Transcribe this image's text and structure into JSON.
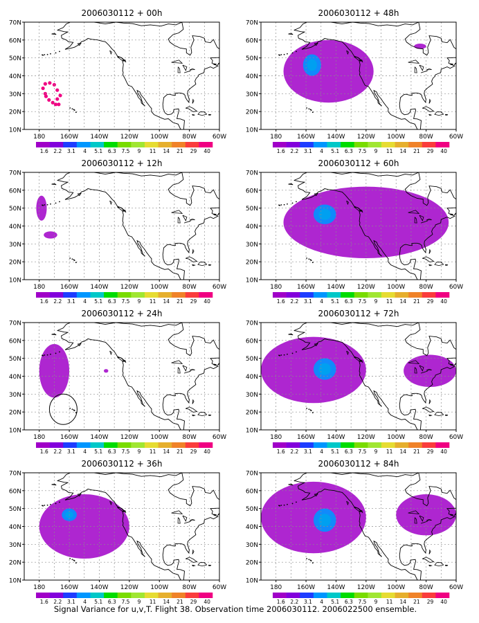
{
  "caption": "Signal Variance for u,v,T. Flight 38. Observation time 2006030112. 2006022500 ensemble.",
  "map": {
    "lon_range": [
      -190,
      -60
    ],
    "lat_range": [
      10,
      70
    ],
    "lon_ticks": [
      "180",
      "160W",
      "140W",
      "120W",
      "100W",
      "80W",
      "60W"
    ],
    "lat_ticks": [
      "10N",
      "20N",
      "30N",
      "40N",
      "50N",
      "60N",
      "70N"
    ]
  },
  "colorbar": {
    "labels": [
      "1.6",
      "2.2",
      "3.1",
      "4",
      "5.1",
      "6.3",
      "7.5",
      "9",
      "11",
      "14",
      "21",
      "29",
      "40"
    ],
    "colors": [
      "#a000c8",
      "#8200dc",
      "#1e3cff",
      "#0096ff",
      "#00c8c8",
      "#00dc00",
      "#78dc00",
      "#a0e632",
      "#e6dc32",
      "#e6af2d",
      "#f08228",
      "#fa3c3c",
      "#f00082"
    ]
  },
  "chart_data": [
    {
      "type": "heatmap",
      "title": "2006030112 + 00h",
      "quantity": "signal variance",
      "regions": [
        {
          "level": "40",
          "note": "ring of observation dots",
          "lon_range": [
            -178,
            -165
          ],
          "lat_range": [
            23,
            36
          ]
        }
      ]
    },
    {
      "type": "heatmap",
      "title": "2006030112 + 48h",
      "quantity": "signal variance",
      "regions": [
        {
          "level": "1.6-3.1",
          "lon_range": [
            -175,
            -115
          ],
          "lat_range": [
            25,
            60
          ]
        },
        {
          "level": "4-5.1",
          "lon_range": [
            -162,
            -150
          ],
          "lat_range": [
            40,
            52
          ]
        },
        {
          "level": "1.6-2.2",
          "lon_range": [
            -88,
            -80
          ],
          "lat_range": [
            55,
            58
          ]
        }
      ]
    },
    {
      "type": "heatmap",
      "title": "2006030112 + 12h",
      "quantity": "signal variance",
      "regions": [
        {
          "level": "1.6-2.2",
          "lon_range": [
            -182,
            -175
          ],
          "lat_range": [
            43,
            57
          ]
        },
        {
          "level": "1.6-2.2",
          "lon_range": [
            -177,
            -168
          ],
          "lat_range": [
            33,
            37
          ]
        }
      ]
    },
    {
      "type": "heatmap",
      "title": "2006030112 + 60h",
      "quantity": "signal variance",
      "regions": [
        {
          "level": "1.6-3.1",
          "lon_range": [
            -175,
            -65
          ],
          "lat_range": [
            22,
            62
          ]
        },
        {
          "level": "4-5.1",
          "lon_range": [
            -155,
            -140
          ],
          "lat_range": [
            41,
            52
          ]
        }
      ]
    },
    {
      "type": "heatmap",
      "title": "2006030112 + 24h",
      "quantity": "signal variance",
      "regions": [
        {
          "level": "1.6-3.1",
          "lon_range": [
            -180,
            -160
          ],
          "lat_range": [
            28,
            58
          ]
        },
        {
          "level": "1.6",
          "lon_range": [
            -137,
            -134
          ],
          "lat_range": [
            42,
            44
          ]
        }
      ]
    },
    {
      "type": "heatmap",
      "title": "2006030112 + 72h",
      "quantity": "signal variance",
      "regions": [
        {
          "level": "1.6-3.1",
          "lon_range": [
            -190,
            -120
          ],
          "lat_range": [
            25,
            62
          ]
        },
        {
          "level": "4-5.1",
          "lon_range": [
            -155,
            -140
          ],
          "lat_range": [
            38,
            50
          ]
        },
        {
          "level": "1.6-3.1",
          "lon_range": [
            -95,
            -60
          ],
          "lat_range": [
            34,
            52
          ]
        }
      ]
    },
    {
      "type": "heatmap",
      "title": "2006030112 + 36h",
      "quantity": "signal variance",
      "regions": [
        {
          "level": "1.6-3.1",
          "lon_range": [
            -180,
            -120
          ],
          "lat_range": [
            22,
            58
          ]
        },
        {
          "level": "4-5.1",
          "lon_range": [
            -165,
            -155
          ],
          "lat_range": [
            43,
            50
          ]
        }
      ]
    },
    {
      "type": "heatmap",
      "title": "2006030112 + 84h",
      "quantity": "signal variance",
      "regions": [
        {
          "level": "1.6-3.1",
          "lon_range": [
            -190,
            -120
          ],
          "lat_range": [
            25,
            65
          ]
        },
        {
          "level": "4-5.1",
          "lon_range": [
            -155,
            -140
          ],
          "lat_range": [
            37,
            50
          ]
        },
        {
          "level": "1.6-3.1",
          "lon_range": [
            -100,
            -60
          ],
          "lat_range": [
            35,
            58
          ]
        }
      ]
    }
  ]
}
